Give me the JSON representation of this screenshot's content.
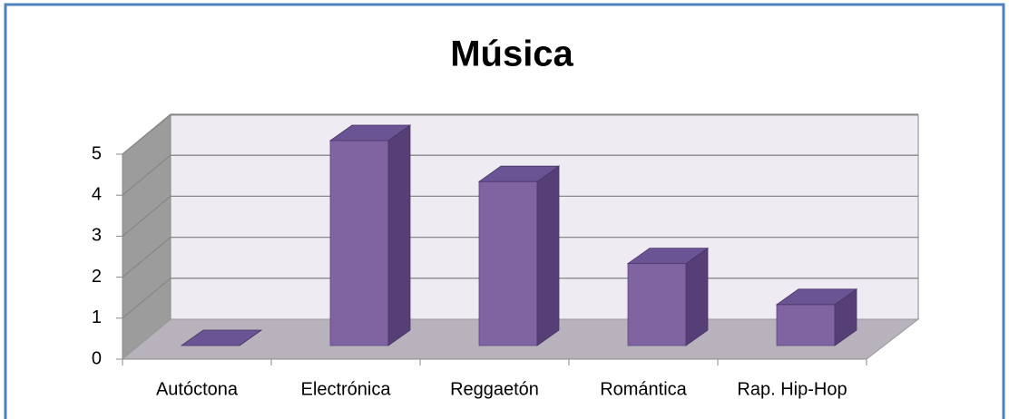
{
  "chart_data": {
    "type": "bar",
    "title": "Música",
    "categories": [
      "Autóctona",
      "Electrónica",
      "Reggaetón",
      "Romántica",
      "Rap. Hip-Hop"
    ],
    "values": [
      0,
      5,
      4,
      2,
      1
    ],
    "color": "#8064a2",
    "ylim": [
      0,
      5
    ],
    "yticks": [
      0,
      1,
      2,
      3,
      4,
      5
    ],
    "grid": true
  }
}
